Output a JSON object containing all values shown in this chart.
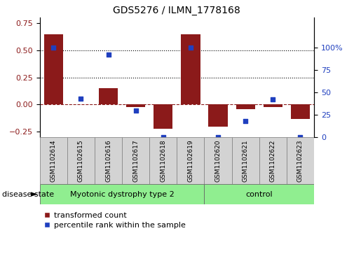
{
  "title": "GDS5276 / ILMN_1778168",
  "samples": [
    "GSM1102614",
    "GSM1102615",
    "GSM1102616",
    "GSM1102617",
    "GSM1102618",
    "GSM1102619",
    "GSM1102620",
    "GSM1102621",
    "GSM1102622",
    "GSM1102623"
  ],
  "transformed_count": [
    0.65,
    0.0,
    0.15,
    -0.02,
    -0.22,
    0.65,
    -0.2,
    -0.04,
    -0.02,
    -0.13
  ],
  "percentile_rank": [
    100,
    43,
    92,
    30,
    0,
    100,
    0,
    18,
    42,
    0
  ],
  "disease_groups": [
    {
      "label": "Myotonic dystrophy type 2",
      "start": 0,
      "end": 6,
      "color": "#90EE90"
    },
    {
      "label": "control",
      "start": 6,
      "end": 10,
      "color": "#90EE90"
    }
  ],
  "ylim_left": [
    -0.3,
    0.8
  ],
  "ylim_right": [
    0,
    133.33
  ],
  "yticks_left": [
    -0.25,
    0.0,
    0.25,
    0.5,
    0.75
  ],
  "yticks_right": [
    0,
    25,
    50,
    75,
    100
  ],
  "bar_color": "#8B1A1A",
  "dot_color": "#1F3FBF",
  "hline_dotted_values": [
    0.25,
    0.5
  ],
  "hline_dash_value": 0.0,
  "legend_labels": [
    "transformed count",
    "percentile rank within the sample"
  ],
  "bg_color": "#FFFFFF"
}
